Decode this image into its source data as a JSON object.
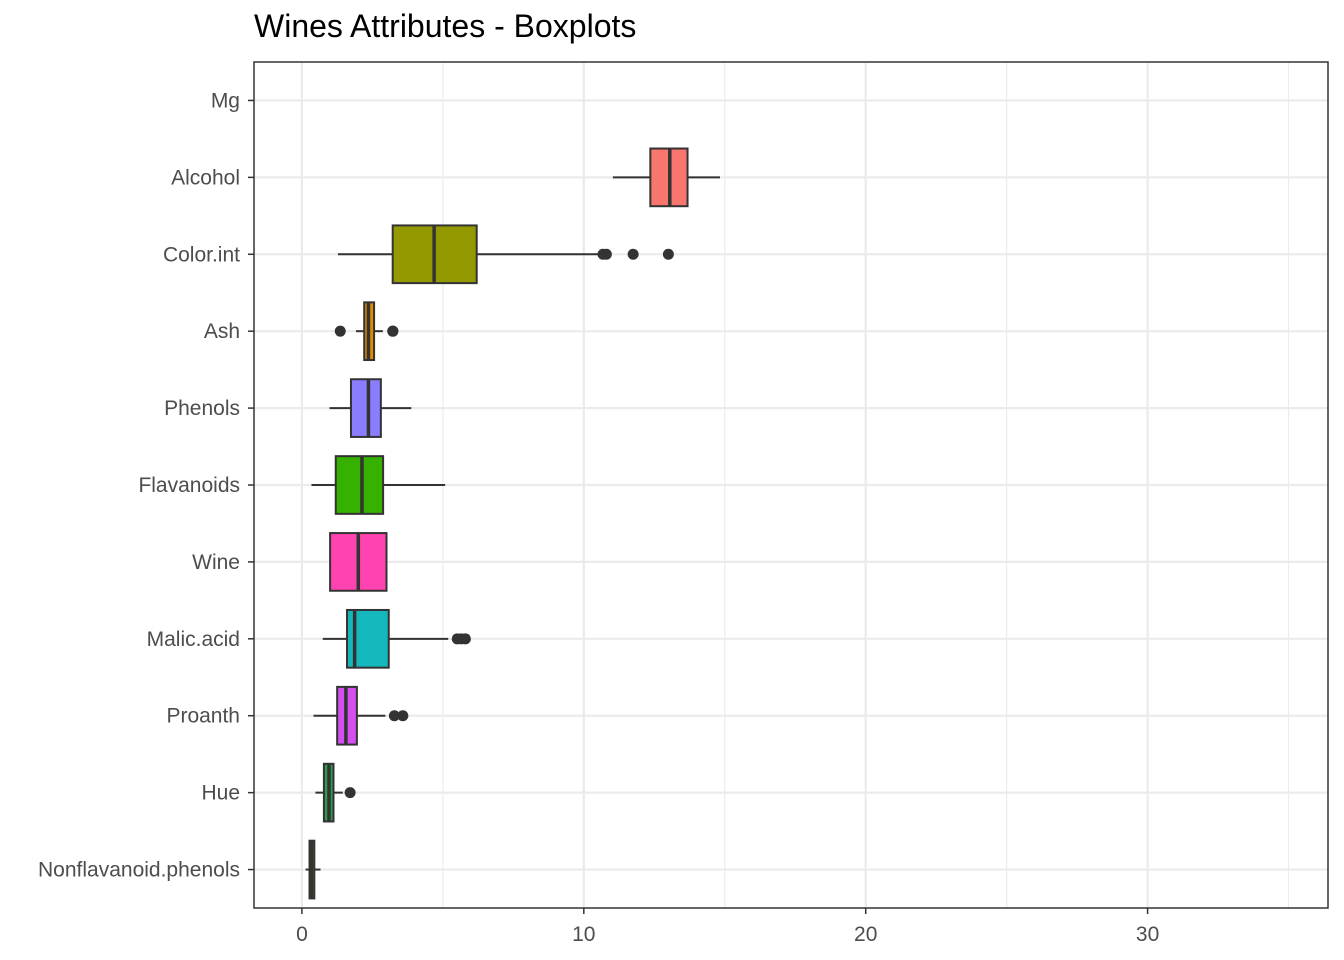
{
  "chart_data": {
    "type": "boxplot",
    "orientation": "horizontal",
    "title": "Wines Attributes - Boxplots",
    "xlabel": "",
    "ylabel": "",
    "xlim": [
      -1.7,
      36.4
    ],
    "x_ticks": [
      0,
      10,
      20,
      30
    ],
    "grid": true,
    "legend": "none",
    "categories": [
      "Mg",
      "Alcohol",
      "Color.int",
      "Ash",
      "Phenols",
      "Flavanoids",
      "Wine",
      "Malic.acid",
      "Proanth",
      "Hue",
      "Nonflavanoid.phenols"
    ],
    "series": [
      {
        "category": "Mg",
        "color": "#f8766d",
        "visible": false
      },
      {
        "category": "Alcohol",
        "color": "#f8766d",
        "whisker_low": 11.03,
        "q1": 12.36,
        "median": 13.05,
        "q3": 13.68,
        "whisker_high": 14.83,
        "outliers": []
      },
      {
        "category": "Color.int",
        "color": "#939900",
        "whisker_low": 1.28,
        "q1": 3.22,
        "median": 4.69,
        "q3": 6.2,
        "whisker_high": 10.68,
        "outliers": [
          10.8,
          10.68,
          11.75,
          13.0
        ]
      },
      {
        "category": "Ash",
        "color": "#e18a00",
        "whisker_low": 1.92,
        "q1": 2.21,
        "median": 2.36,
        "q3": 2.56,
        "whisker_high": 2.87,
        "outliers": [
          1.36,
          3.22,
          3.23
        ]
      },
      {
        "category": "Phenols",
        "color": "#8b7dff",
        "whisker_low": 0.98,
        "q1": 1.74,
        "median": 2.36,
        "q3": 2.8,
        "whisker_high": 3.88,
        "outliers": []
      },
      {
        "category": "Flavanoids",
        "color": "#36b100",
        "whisker_low": 0.34,
        "q1": 1.2,
        "median": 2.13,
        "q3": 2.88,
        "whisker_high": 5.08,
        "outliers": []
      },
      {
        "category": "Wine",
        "color": "#ff43b0",
        "whisker_low": 1.0,
        "q1": 1.0,
        "median": 2.0,
        "q3": 3.0,
        "whisker_high": 3.0,
        "outliers": []
      },
      {
        "category": "Malic.acid",
        "color": "#14b7bb",
        "whisker_low": 0.74,
        "q1": 1.6,
        "median": 1.87,
        "q3": 3.08,
        "whisker_high": 5.19,
        "outliers": [
          5.51,
          5.65,
          5.8
        ]
      },
      {
        "category": "Proanth",
        "color": "#d44ef0",
        "whisker_low": 0.41,
        "q1": 1.25,
        "median": 1.56,
        "q3": 1.95,
        "whisker_high": 2.96,
        "outliers": [
          3.28,
          3.58
        ]
      },
      {
        "category": "Hue",
        "color": "#2e9b50",
        "whisker_low": 0.48,
        "q1": 0.78,
        "median": 0.96,
        "q3": 1.12,
        "whisker_high": 1.45,
        "outliers": [
          1.71
        ]
      },
      {
        "category": "Nonflavanoid.phenols",
        "color": "#a08800",
        "whisker_low": 0.13,
        "q1": 0.27,
        "median": 0.34,
        "q3": 0.44,
        "whisker_high": 0.66,
        "outliers": []
      }
    ]
  }
}
